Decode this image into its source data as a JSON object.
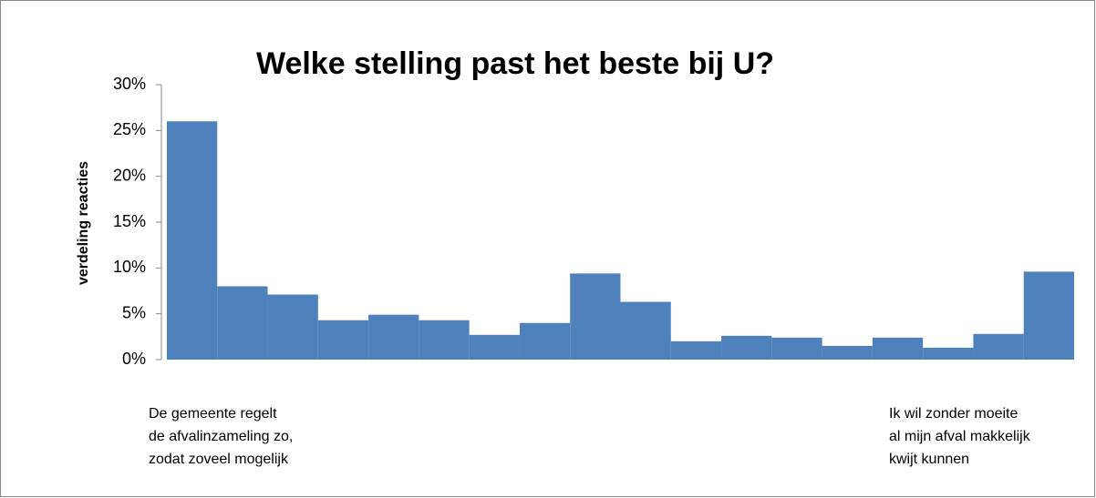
{
  "chart_data": {
    "type": "bar",
    "title": "Welke stelling past het beste bij U?",
    "y_label": "verdeling reacties",
    "categories": [
      null,
      null,
      null,
      null,
      null,
      null,
      null,
      null,
      null,
      null,
      null,
      null,
      null,
      null,
      null,
      null,
      null,
      null
    ],
    "values": [
      26,
      8.0,
      7.1,
      4.3,
      4.9,
      4.3,
      2.7,
      4.0,
      9.4,
      6.3,
      2.0,
      2.6,
      2.4,
      1.5,
      2.4,
      1.3,
      2.8,
      9.6
    ],
    "color": "#4f81bd",
    "ylim": [
      0,
      30
    ],
    "yticks": [
      {
        "value": 0,
        "label": "0%"
      },
      {
        "value": 5,
        "label": "5%"
      },
      {
        "value": 10,
        "label": "10%"
      },
      {
        "value": 15,
        "label": "15%"
      },
      {
        "value": 20,
        "label": "20%"
      },
      {
        "value": 25,
        "label": "25%"
      },
      {
        "value": 30,
        "label": "30%"
      }
    ],
    "grid": false,
    "annotations": [
      {
        "lines": [
          "De gemeente regelt",
          "de afvalinzameling zo,",
          "zodat zoveel mogelijk"
        ]
      },
      {
        "lines": [
          "Ik wil zonder moeite",
          "al mijn afval makkelijk",
          "kwijt kunnen"
        ]
      }
    ]
  }
}
